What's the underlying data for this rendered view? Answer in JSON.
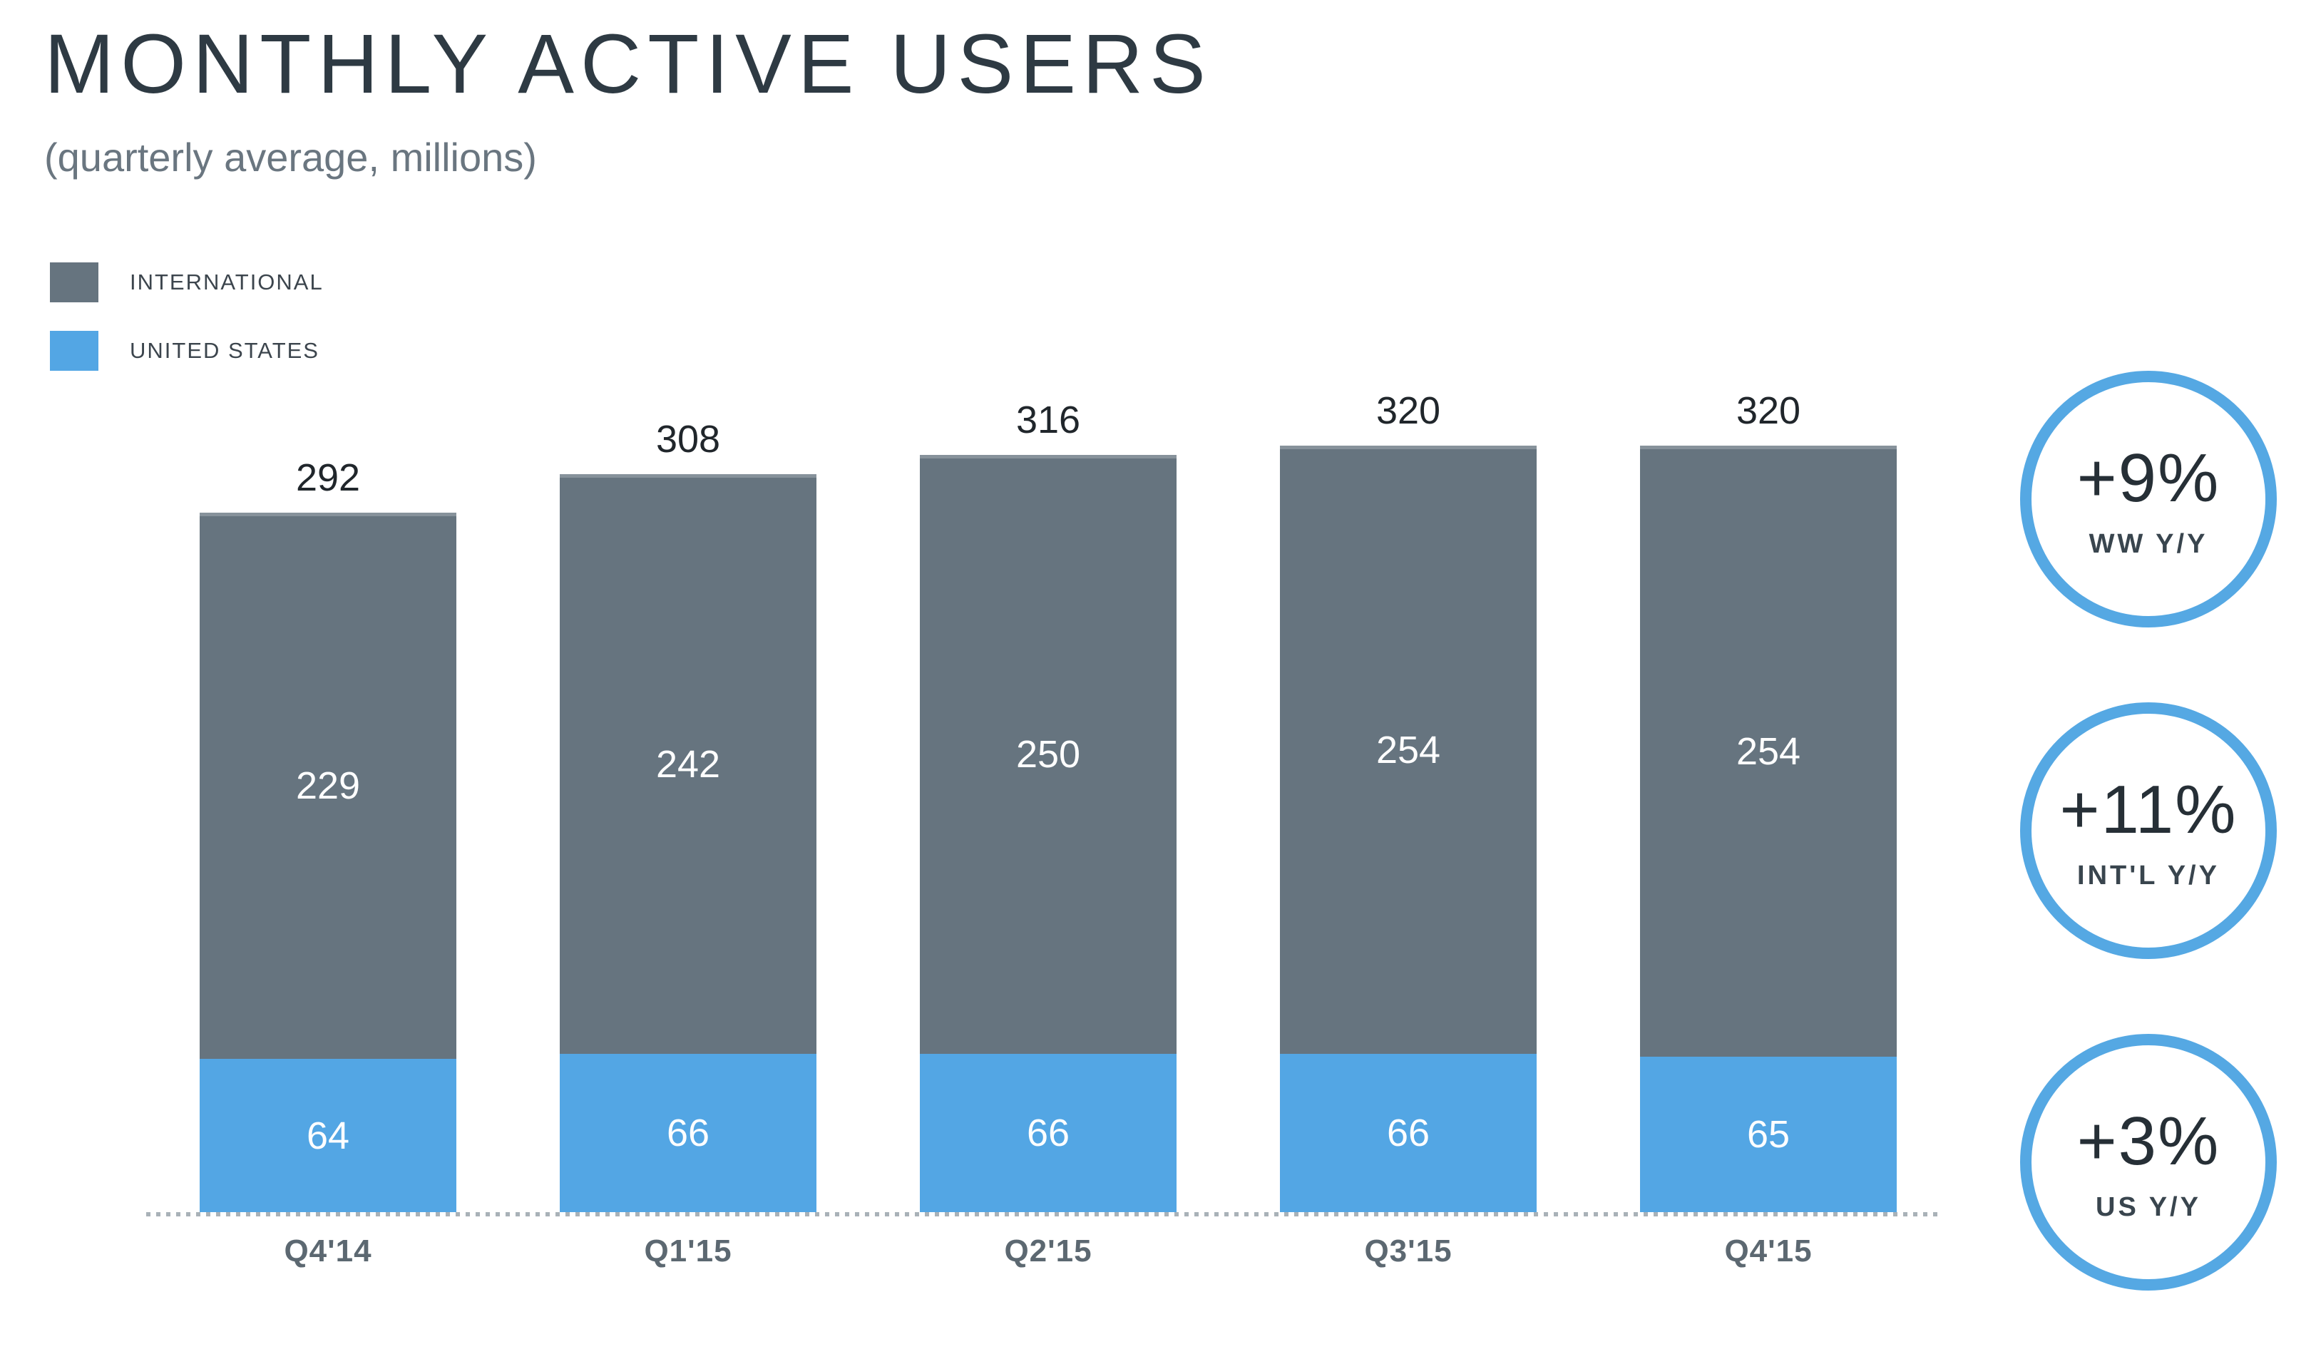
{
  "chart_data": {
    "type": "bar",
    "stacked": true,
    "title": "MONTHLY ACTIVE USERS",
    "subtitle": "(quarterly average, millions)",
    "unit": "millions",
    "categories": [
      "Q4'14",
      "Q1'15",
      "Q2'15",
      "Q3'15",
      "Q4'15"
    ],
    "series": [
      {
        "name": "INTERNATIONAL",
        "color": "#66747f",
        "values": [
          229,
          242,
          250,
          254,
          254
        ]
      },
      {
        "name": "UNITED STATES",
        "color": "#53a6e4",
        "values": [
          64,
          66,
          66,
          66,
          65
        ]
      }
    ],
    "totals": [
      292,
      308,
      316,
      320,
      320
    ],
    "ylim": [
      0,
      340
    ],
    "grid": false,
    "legend_position": "top-left",
    "value_labels": "segment-centers-and-totals-above-bars",
    "baseline_style": "dotted"
  },
  "callouts": [
    {
      "value": "+9%",
      "label": "WW Y/Y"
    },
    {
      "value": "+11%",
      "label": "INT'L Y/Y"
    },
    {
      "value": "+3%",
      "label": "US Y/Y"
    }
  ],
  "colors": {
    "international": "#66747f",
    "united_states": "#53a6e4",
    "callout_ring": "#55a8e3"
  }
}
